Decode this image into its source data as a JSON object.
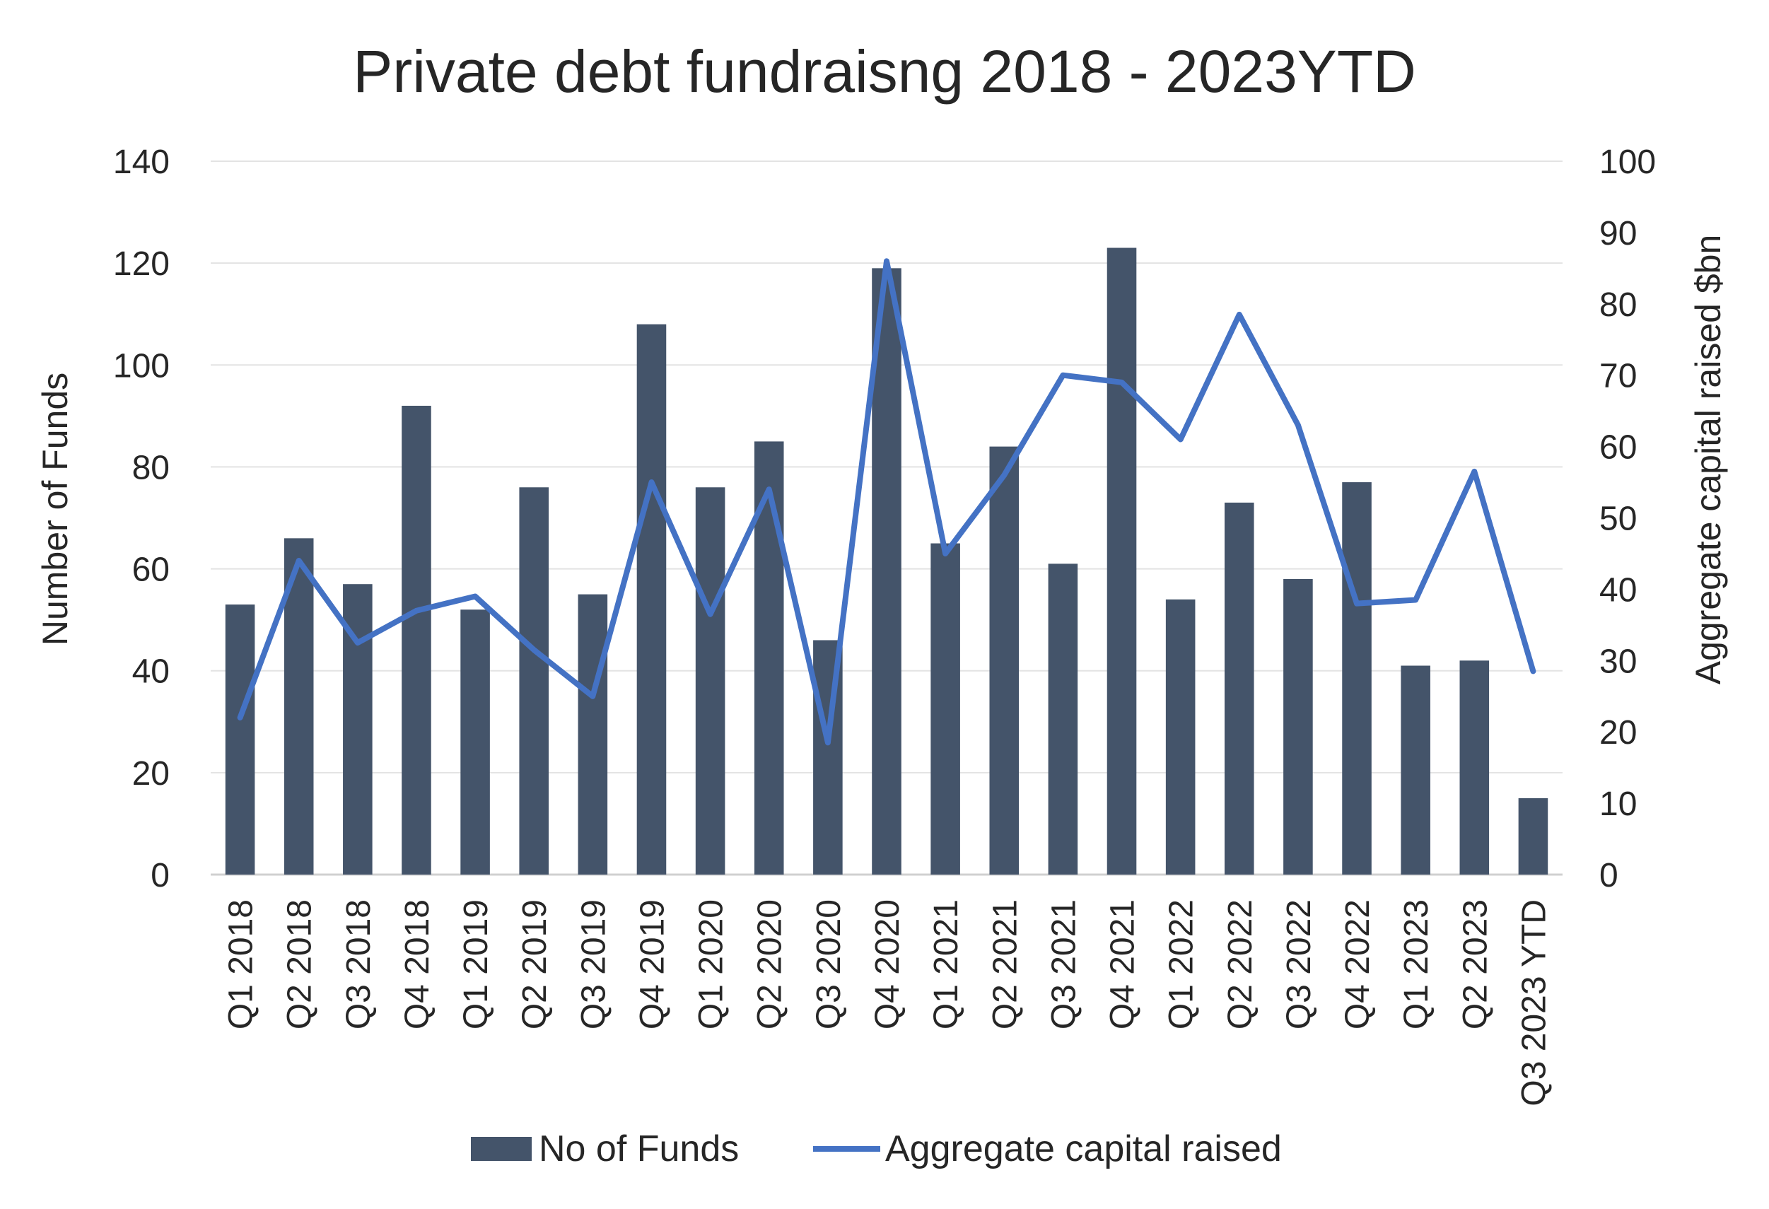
{
  "chart_data": {
    "type": "bar",
    "title": "Private debt fundraisng 2018 - 2023YTD",
    "ylabel_left": "Number of Funds",
    "ylabel_right": "Aggregate capital raised $bn",
    "categories": [
      "Q1 2018",
      "Q2 2018",
      "Q3 2018",
      "Q4 2018",
      "Q1 2019",
      "Q2 2019",
      "Q3 2019",
      "Q4 2019",
      "Q1 2020",
      "Q2 2020",
      "Q3 2020",
      "Q4 2020",
      "Q1 2021",
      "Q2 2021",
      "Q3 2021",
      "Q4 2021",
      "Q1 2022",
      "Q2 2022",
      "Q3 2022",
      "Q4 2022",
      "Q1 2023",
      "Q2 2023",
      "Q3 2023 YTD"
    ],
    "series": [
      {
        "name": "No of Funds",
        "type": "bar",
        "axis": "left",
        "color": "#44546A",
        "values": [
          53,
          66,
          57,
          92,
          52,
          76,
          55,
          108,
          76,
          85,
          46,
          119,
          65,
          84,
          61,
          123,
          54,
          73,
          58,
          77,
          41,
          42,
          15
        ]
      },
      {
        "name": "Aggregate capital raised",
        "type": "line",
        "axis": "right",
        "color": "#4472C4",
        "values": [
          22,
          44,
          32.5,
          37,
          39,
          31.5,
          25,
          55,
          36.5,
          54,
          18.5,
          86,
          45,
          56,
          70,
          69,
          61,
          78.5,
          63,
          38,
          38.5,
          56.5,
          28.5
        ]
      }
    ],
    "ylim_left": [
      0,
      140
    ],
    "yticks_left": [
      0,
      20,
      40,
      60,
      80,
      100,
      120,
      140
    ],
    "ylim_right": [
      0,
      100
    ],
    "yticks_right": [
      0,
      10,
      20,
      30,
      40,
      50,
      60,
      70,
      80,
      90,
      100
    ],
    "grid": true,
    "legend_position": "bottom"
  }
}
